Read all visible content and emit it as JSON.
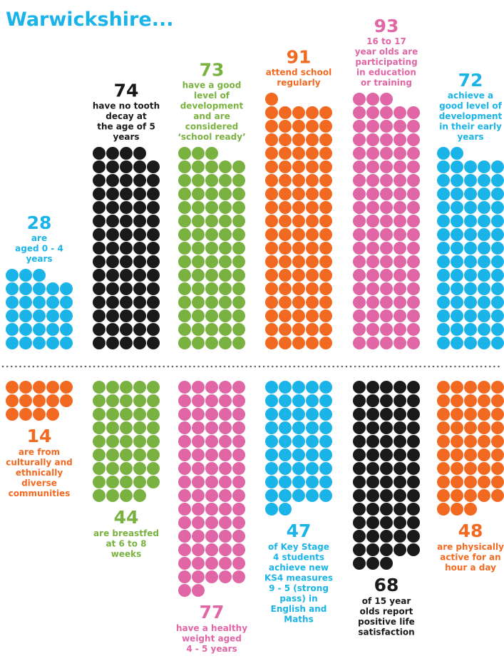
{
  "chart_data": {
    "type": "pictogram",
    "title": "Warwickshire...",
    "rows": [
      [
        {
          "value": 28,
          "color": "#1bb4e8",
          "lines": [
            "are",
            "aged 0 - 4",
            "years"
          ]
        },
        {
          "value": 74,
          "color": "#1a1a1a",
          "lines": [
            "have no tooth",
            "decay at",
            "the age of 5",
            "years"
          ]
        },
        {
          "value": 73,
          "color": "#7ab241",
          "lines": [
            "have a good",
            "level of",
            "development",
            "and are",
            "considered",
            "‘school ready’"
          ]
        },
        {
          "value": 91,
          "color": "#f26a21",
          "lines": [
            "attend school",
            "regularly"
          ]
        },
        {
          "value": 93,
          "color": "#e066a6",
          "lines": [
            "16 to 17",
            "year olds are",
            "participating",
            "in education",
            "or training"
          ]
        },
        {
          "value": 72,
          "color": "#1bb4e8",
          "lines": [
            "achieve a",
            "good level of",
            "development",
            "in their early",
            "years"
          ]
        }
      ],
      [
        {
          "value": 14,
          "color": "#f26a21",
          "lines": [
            "are from",
            "culturally and",
            "ethnically",
            "diverse",
            "communities"
          ]
        },
        {
          "value": 44,
          "color": "#7ab241",
          "lines": [
            "are breastfed",
            "at 6 to 8",
            "weeks"
          ]
        },
        {
          "value": 77,
          "color": "#e066a6",
          "lines": [
            "have a healthy",
            "weight aged",
            "4 - 5 years"
          ]
        },
        {
          "value": 47,
          "color": "#1bb4e8",
          "lines": [
            "of Key Stage",
            "4 students",
            "achieve new",
            "KS4 measures",
            "9 - 5 (strong",
            "pass) in",
            "English and",
            "Maths"
          ]
        },
        {
          "value": 68,
          "color": "#1a1a1a",
          "lines": [
            "of 15 year",
            "olds report",
            "positive life",
            "satisfaction"
          ]
        },
        {
          "value": 48,
          "color": "#f26a21",
          "lines": [
            "are physically",
            "active for an",
            "hour a day"
          ]
        }
      ]
    ]
  }
}
